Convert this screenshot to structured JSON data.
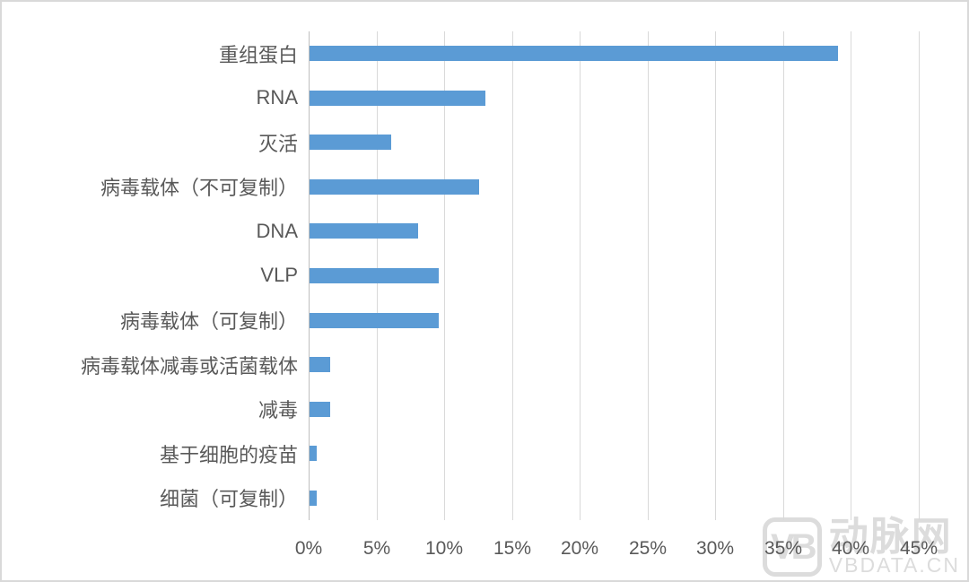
{
  "chart_data": {
    "type": "bar",
    "orientation": "horizontal",
    "title": "",
    "xlabel": "",
    "ylabel": "",
    "categories": [
      "重组蛋白",
      "RNA",
      "灭活",
      "病毒载体（不可复制）",
      "DNA",
      "VLP",
      "病毒载体（可复制）",
      "病毒载体减毒或活菌载体",
      "减毒",
      "基于细胞的疫苗",
      "细菌（可复制）"
    ],
    "values": [
      39,
      13,
      6,
      12.5,
      8,
      9.5,
      9.5,
      1.5,
      1.5,
      0.5,
      0.5
    ],
    "xlim": [
      0,
      45
    ],
    "x_tick_step": 5,
    "x_tick_labels": [
      "0%",
      "5%",
      "10%",
      "15%",
      "20%",
      "25%",
      "30%",
      "35%",
      "40%",
      "45%"
    ],
    "grid": "vertical-only",
    "legend": "none",
    "bar_color": "#5b9bd5",
    "gridline_color": "#d9d9d9",
    "axis_line_color": "#bfbfbf",
    "text_color": "#595959"
  },
  "watermark": {
    "logo_text": "VB",
    "brand_name": "动脉网",
    "brand_url": "VBDATA.CN",
    "color": "#dcdcdc"
  }
}
